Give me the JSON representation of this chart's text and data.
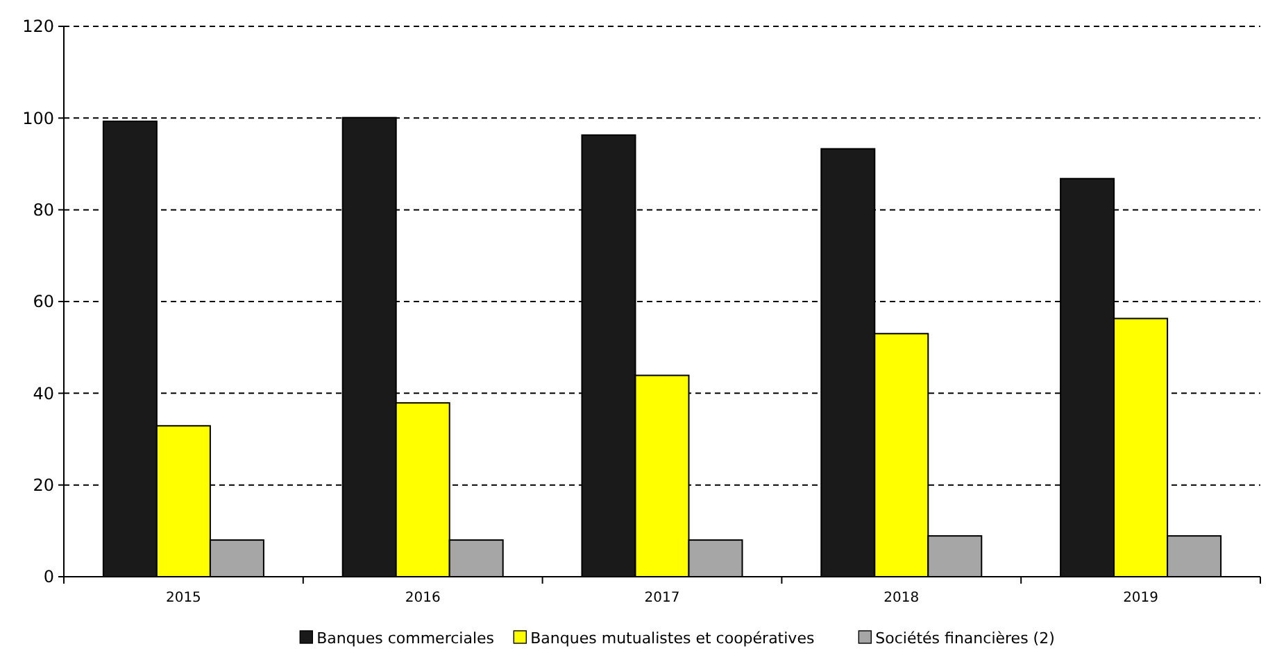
{
  "chart_data": {
    "type": "bar",
    "categories": [
      "2015",
      "2016",
      "2017",
      "2018",
      "2019"
    ],
    "series": [
      {
        "name": "Banques commerciales",
        "color": "#1a1a1a",
        "values": [
          99.3,
          100.1,
          96.3,
          93.3,
          86.8
        ]
      },
      {
        "name": "Banques mutualistes et coopératives",
        "color": "#ffff00",
        "values": [
          32.9,
          37.9,
          43.9,
          53,
          56.3
        ]
      },
      {
        "name": "Sociétés financières (2)",
        "color": "#a6a6a6",
        "values": [
          8,
          8,
          8,
          8.9,
          8.9
        ]
      }
    ],
    "ylim": [
      0,
      120
    ],
    "yticks": [
      0,
      20,
      40,
      60,
      80,
      100,
      120
    ],
    "grid": "y",
    "legend": "bottom"
  }
}
